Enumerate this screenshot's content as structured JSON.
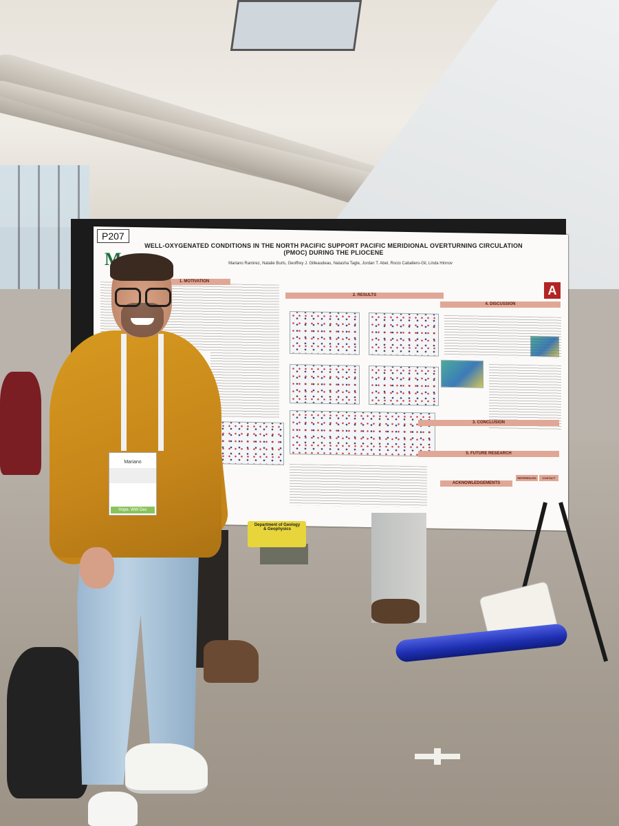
{
  "photo": {
    "subject": "poster-session-presenter",
    "poster": {
      "board_number": "P207",
      "title": "WELL-OXYGENATED CONDITIONS IN THE NORTH PACIFIC SUPPORT PACIFIC MERIDIONAL OVERTURNING CIRCULATION (PMOC) DURING THE PLIOCENE",
      "authors": "Mariano Ramirez, Natalie Burls, Geoffrey J. Gilleaudeau, Natasha Tagle, Jordan T. Abel, Rocio Caballero-Gil, Linda Hinnov",
      "sections": [
        "1. MOTIVATION",
        "2. RESULTS",
        "4. DISCUSSION",
        "3. CONCLUSION",
        "5. FUTURE RESEARCH",
        "ACKNOWLEDGEMENTS",
        "REFERENCES",
        "CONTACT"
      ],
      "logo_left": "M",
      "logo_right": "A"
    },
    "badge_name": "Mariano",
    "badge_footer": "Hope. WW Dec",
    "bag_text": "Department of Geology & Geophysics",
    "colors": {
      "sweater": "#c6861a",
      "tube": "#1d2fb0",
      "section_header": "#e0a796"
    }
  }
}
